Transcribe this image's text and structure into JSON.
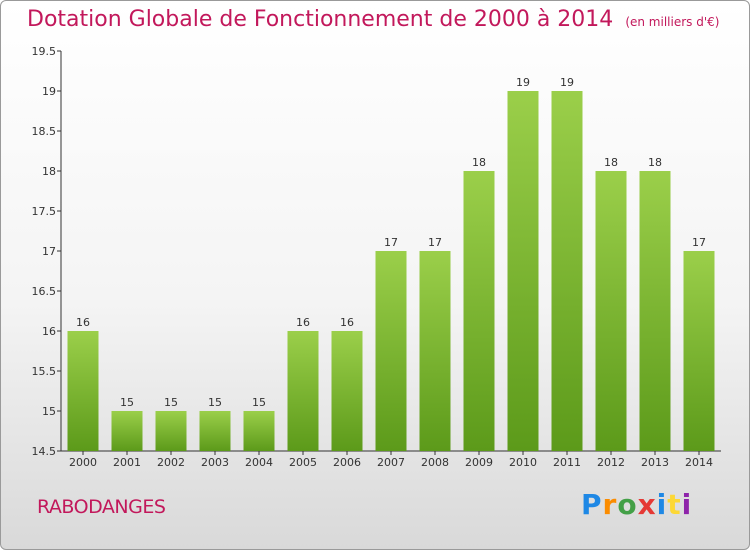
{
  "title": "Dotation Globale de Fonctionnement de 2000 à 2014",
  "subtitle": "(en milliers d'€)",
  "commune": "RABODANGES",
  "logo": [
    "P",
    "r",
    "o",
    "x",
    "i",
    "t",
    "i"
  ],
  "colors": {
    "bar_top": "#9bcf4a",
    "bar_bottom": "#5c9a1a",
    "title": "#c2185b"
  },
  "chart_data": {
    "type": "bar",
    "title": "Dotation Globale de Fonctionnement de 2000 à 2014",
    "subtitle": "(en milliers d'€)",
    "categories": [
      "2000",
      "2001",
      "2002",
      "2003",
      "2004",
      "2005",
      "2006",
      "2007",
      "2008",
      "2009",
      "2010",
      "2011",
      "2012",
      "2013",
      "2014"
    ],
    "values": [
      16,
      15,
      15,
      15,
      15,
      16,
      16,
      17,
      17,
      18,
      19,
      19,
      18,
      18,
      17
    ],
    "data_labels": [
      "16",
      "15",
      "15",
      "15",
      "15",
      "16",
      "16",
      "17",
      "17",
      "18",
      "19",
      "19",
      "18",
      "18",
      "17"
    ],
    "ylim": [
      14.5,
      19.5
    ],
    "yticks": [
      14.5,
      15,
      15.5,
      16,
      16.5,
      17,
      17.5,
      18,
      18.5,
      19,
      19.5
    ],
    "ytick_labels": [
      "14.5",
      "15",
      "15.5",
      "16",
      "16.5",
      "17",
      "17.5",
      "18",
      "18.5",
      "19",
      "19.5"
    ],
    "grid": false,
    "xlabel": "",
    "ylabel": ""
  }
}
